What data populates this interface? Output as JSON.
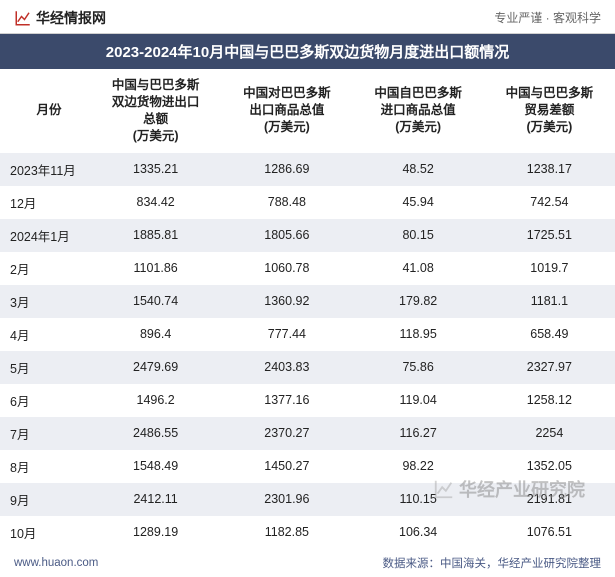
{
  "header": {
    "logo_text": "华经情报网",
    "tagline": "专业严谨 · 客观科学",
    "logo_color": "#c03028"
  },
  "title": "2023-2024年10月中国与巴巴多斯双边货物月度进出口额情况",
  "title_bg": "#3b4a6b",
  "title_color": "#ffffff",
  "table": {
    "columns": [
      "月份",
      "中国与巴巴多斯\n双边货物进出口\n总额\n(万美元)",
      "中国对巴巴多斯\n出口商品总值\n(万美元)",
      "中国自巴巴多斯\n进口商品总值\n(万美元)",
      "中国与巴巴多斯\n贸易差额\n(万美元)"
    ],
    "rows": [
      [
        "2023年11月",
        "1335.21",
        "1286.69",
        "48.52",
        "1238.17"
      ],
      [
        "12月",
        "834.42",
        "788.48",
        "45.94",
        "742.54"
      ],
      [
        "2024年1月",
        "1885.81",
        "1805.66",
        "80.15",
        "1725.51"
      ],
      [
        "2月",
        "1101.86",
        "1060.78",
        "41.08",
        "1019.7"
      ],
      [
        "3月",
        "1540.74",
        "1360.92",
        "179.82",
        "1181.1"
      ],
      [
        "4月",
        "896.4",
        "777.44",
        "118.95",
        "658.49"
      ],
      [
        "5月",
        "2479.69",
        "2403.83",
        "75.86",
        "2327.97"
      ],
      [
        "6月",
        "1496.2",
        "1377.16",
        "119.04",
        "1258.12"
      ],
      [
        "7月",
        "2486.55",
        "2370.27",
        "116.27",
        "2254"
      ],
      [
        "8月",
        "1548.49",
        "1450.27",
        "98.22",
        "1352.05"
      ],
      [
        "9月",
        "2412.11",
        "2301.96",
        "110.15",
        "2191.81"
      ],
      [
        "10月",
        "1289.19",
        "1182.85",
        "106.34",
        "1076.51"
      ]
    ],
    "row_even_bg": "#eceef3",
    "row_odd_bg": "#ffffff",
    "text_color": "#222222",
    "font_size": 12.5
  },
  "footer": {
    "url": "www.huaon.com",
    "source": "数据来源：中国海关，华经产业研究院整理",
    "text_color": "#4a5a85"
  },
  "watermark": {
    "text": "华经产业研究院",
    "color": "#888888"
  }
}
